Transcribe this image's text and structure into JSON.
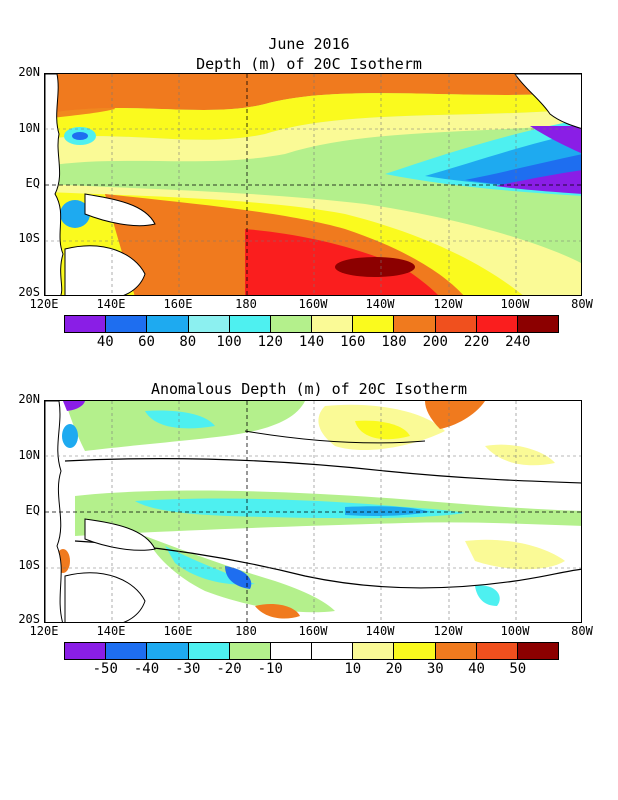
{
  "header": {
    "title": "June 2016",
    "subtitle": "Depth (m) of 20C Isotherm"
  },
  "top_panel": {
    "lat_labels": [
      "20N",
      "10N",
      "EQ",
      "10S",
      "20S"
    ],
    "lon_labels": [
      "120E",
      "140E",
      "160E",
      "180",
      "160W",
      "140W",
      "120W",
      "100W",
      "80W"
    ],
    "colorbar": {
      "colors": [
        "#8a1ee6",
        "#1e6ef0",
        "#1eaaf0",
        "#8cf0f0",
        "#4ef0f0",
        "#b4f08c",
        "#fafa96",
        "#fafa1e",
        "#f07a1e",
        "#f0501e",
        "#fa1e1e",
        "#8c0000"
      ],
      "labels": [
        "40",
        "60",
        "80",
        "100",
        "120",
        "140",
        "160",
        "180",
        "200",
        "220",
        "240"
      ]
    }
  },
  "bottom_panel": {
    "title": "Anomalous Depth (m) of 20C Isotherm",
    "lat_labels": [
      "20N",
      "10N",
      "EQ",
      "10S",
      "20S"
    ],
    "lon_labels": [
      "120E",
      "140E",
      "160E",
      "180",
      "160W",
      "140W",
      "120W",
      "100W",
      "80W"
    ],
    "colorbar": {
      "colors": [
        "#8a1ee6",
        "#1e6ef0",
        "#1eaaf0",
        "#4ef0f0",
        "#b4f08c",
        "#ffffff",
        "#ffffff",
        "#fafa96",
        "#fafa1e",
        "#f07a1e",
        "#f0501e",
        "#8c0000"
      ],
      "labels": [
        "-50",
        "-40",
        "-30",
        "-20",
        "-10",
        "10",
        "20",
        "30",
        "40",
        "50"
      ]
    }
  }
}
